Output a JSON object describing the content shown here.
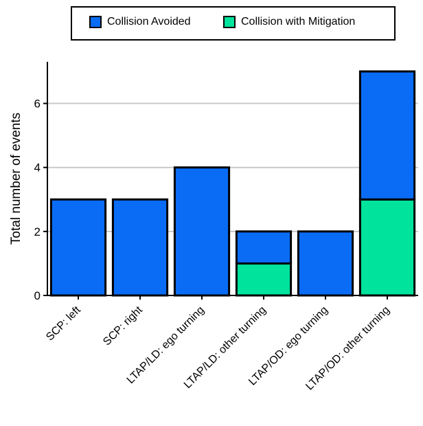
{
  "chart_data": {
    "type": "bar",
    "stacked": true,
    "categories": [
      "SCP: left",
      "SCP: right",
      "LTAP/LD: ego turning",
      "LTAP/LD: other turning",
      "LTAP/OD: ego turning",
      "LTAP/OD: other turning"
    ],
    "series": [
      {
        "name": "Collision with Mitigation",
        "color": "#00e39c",
        "values": [
          0,
          0,
          0,
          1,
          0,
          3
        ]
      },
      {
        "name": "Collision Avoided",
        "color": "#0a6cf5",
        "values": [
          3,
          3,
          4,
          1,
          2,
          4
        ]
      }
    ],
    "ylabel": "Total number of events",
    "xlabel": "",
    "ylim": [
      0,
      7.3
    ],
    "yticks": [
      0,
      2,
      4,
      6
    ],
    "grid": "horizontal",
    "legend": "top"
  },
  "legend": {
    "items": [
      {
        "label": "Collision Avoided",
        "color": "#0a6cf5"
      },
      {
        "label": "Collision with Mitigation",
        "color": "#00e39c"
      }
    ]
  }
}
